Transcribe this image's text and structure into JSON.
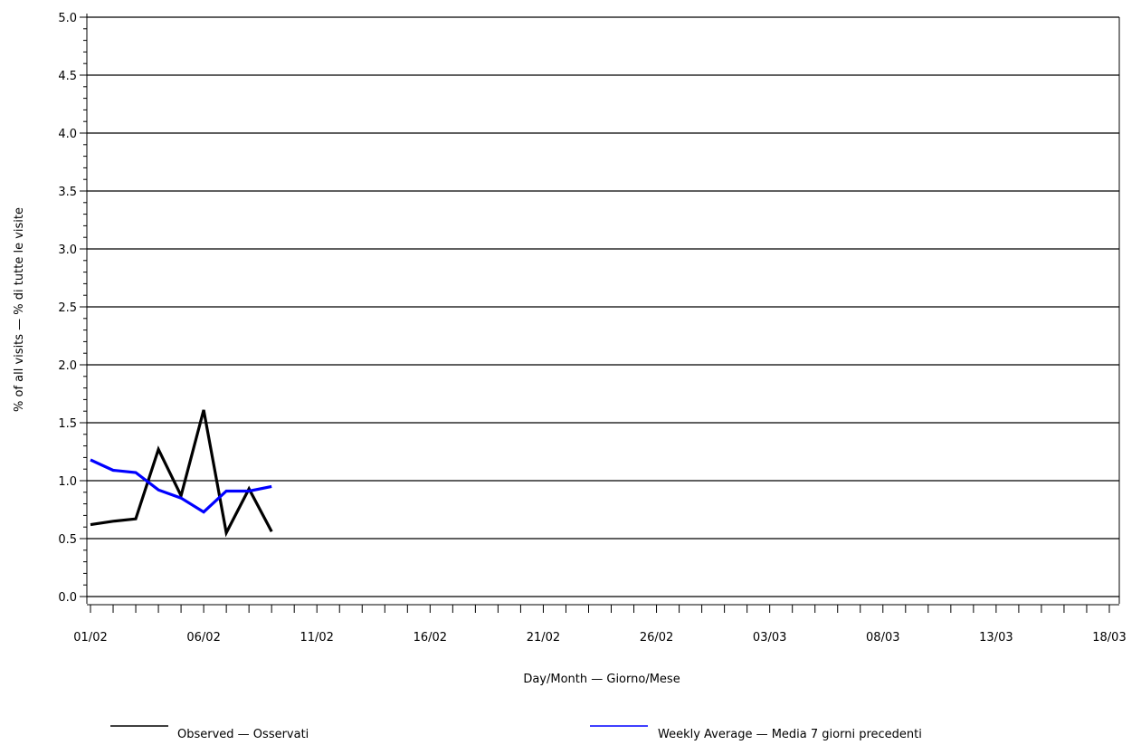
{
  "chart_data": {
    "type": "line",
    "xlabel": "Day/Month — Giorno/Mese",
    "ylabel": "% of all visits — % di tutte le visite",
    "ylim": [
      0,
      5
    ],
    "yticks": [
      "0.0",
      "0.5",
      "1.0",
      "1.5",
      "2.0",
      "2.5",
      "3.0",
      "3.5",
      "4.0",
      "4.5",
      "5.0"
    ],
    "x_domain_days": [
      0,
      45.4
    ],
    "xticks": [
      {
        "label": "01/02",
        "day": 0
      },
      {
        "label": "06/02",
        "day": 5
      },
      {
        "label": "11/02",
        "day": 10
      },
      {
        "label": "16/02",
        "day": 15
      },
      {
        "label": "21/02",
        "day": 20
      },
      {
        "label": "26/02",
        "day": 25
      },
      {
        "label": "03/03",
        "day": 30
      },
      {
        "label": "08/03",
        "day": 35
      },
      {
        "label": "13/03",
        "day": 40
      },
      {
        "label": "18/03",
        "day": 45
      }
    ],
    "grid": "horizontal",
    "legend_position": "bottom",
    "series": [
      {
        "name": "Observed — Osservati",
        "color": "#000000",
        "x": [
          "01/02",
          "02/02",
          "03/02",
          "04/02",
          "05/02",
          "06/02",
          "07/02",
          "08/02",
          "09/02",
          "10/02"
        ],
        "values": [
          0.62,
          0.65,
          0.67,
          1.27,
          0.87,
          1.61,
          0.55,
          0.93,
          0.56,
          null
        ]
      },
      {
        "name": "Weekly Average — Media 7 giorni precedenti",
        "color": "#0000ff",
        "x": [
          "01/02",
          "02/02",
          "03/02",
          "04/02",
          "05/02",
          "06/02",
          "07/02",
          "08/02",
          "09/02",
          "10/02"
        ],
        "values": [
          1.18,
          1.09,
          1.07,
          0.92,
          0.85,
          0.73,
          0.91,
          0.91,
          0.95,
          null
        ]
      }
    ]
  }
}
